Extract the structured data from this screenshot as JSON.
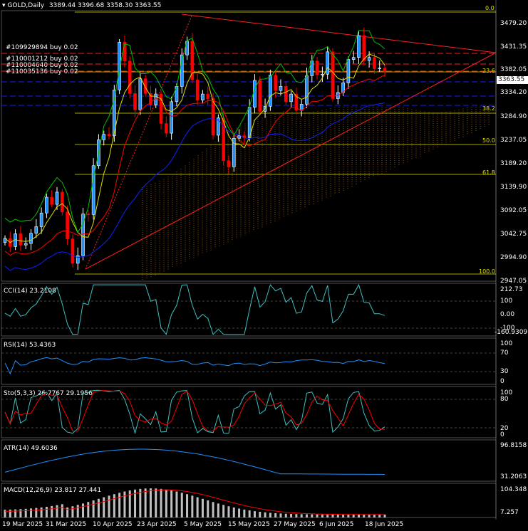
{
  "header": {
    "symbol": "GOLD,Daily",
    "ohlc": "3389.44 3396.68 3358.30 3363.55"
  },
  "orders": [
    "#109929894 buy 0.02",
    "#110001212 buy 0.02",
    "#110004640 buy 0.02",
    "#110035136 buy 0.02"
  ],
  "current_price": "3363.55",
  "fib_levels": [
    "0.0",
    "23.6",
    "38.2",
    "50.0",
    "61.8",
    "100.0"
  ],
  "price_axis": [
    "3479.20",
    "3431.35",
    "3382.05",
    "3334.20",
    "3284.90",
    "3237.05",
    "3189.20",
    "3139.90",
    "3092.05",
    "3042.75",
    "2994.90",
    "2947.05"
  ],
  "date_axis": [
    "19 Mar 2025",
    "31 Mar 2025",
    "10 Apr 2025",
    "23 Apr 2025",
    "5 May 2025",
    "15 May 2025",
    "27 May 2025",
    "6 Jun 2025",
    "18 Jun 2025"
  ],
  "indicators": {
    "cci": {
      "title": "CCI(14) 23.2108",
      "axis": [
        "212.73",
        "100",
        "0.00",
        "-100",
        "-160.9309"
      ]
    },
    "rsi": {
      "title": "RSI(14) 53.4363",
      "axis": [
        "100",
        "70",
        "30",
        "0"
      ]
    },
    "stoch": {
      "title": "Sto(5,3,3) 26.7767 29.1956",
      "axis": [
        "100",
        "80",
        "20",
        "0"
      ]
    },
    "atr": {
      "title": "ATR(14) 49.6036",
      "axis": [
        "96.8158",
        "31.2063"
      ]
    },
    "macd": {
      "title": "MACD(12,26,9) 23.817 27.441",
      "axis": [
        "104.348",
        "7.257"
      ]
    }
  },
  "colors": {
    "bull": "#ffffff",
    "bear": "#ff0000",
    "bull_body": "#1e90ff",
    "bear_body": "#ff0000",
    "fib": "#e0e000",
    "trend": "#ff2020",
    "ma_green": "#00c000",
    "ma_blue": "#1020ff",
    "ma_yellow": "#e0e000",
    "ma_red": "#ff0000",
    "cci": "#40c0c0",
    "rsi": "#1e90ff",
    "stoch_main": "#40c0c0",
    "stoch_signal": "#ff0000",
    "atr": "#1e90ff",
    "macd_hist": "#c0c0c0",
    "macd_signal": "#ff0000"
  },
  "chart_data": {
    "type": "candlestick",
    "symbol": "GOLD",
    "timeframe": "Daily",
    "ylim": [
      2947.05,
      3479.2
    ],
    "x": [
      "19 Mar 2025",
      "31 Mar 2025",
      "10 Apr 2025",
      "23 Apr 2025",
      "5 May 2025",
      "15 May 2025",
      "27 May 2025",
      "6 Jun 2025",
      "18 Jun 2025"
    ],
    "closes": [
      3034,
      3018,
      3043,
      3021,
      3024,
      3044,
      3057,
      3084,
      3115,
      3101,
      3125,
      3086,
      3033,
      2985,
      3000,
      3082,
      3081,
      3177,
      3228,
      3239,
      3236,
      3326,
      3420,
      3383,
      3319,
      3287,
      3348,
      3319,
      3297,
      3318,
      3260,
      3241,
      3303,
      3333,
      3395,
      3422,
      3346,
      3306,
      3318,
      3309,
      3237,
      3271,
      3187,
      3175,
      3231,
      3236,
      3232,
      3292,
      3345,
      3284,
      3294,
      3355,
      3325,
      3333,
      3303,
      3318,
      3286,
      3298,
      3354,
      3383,
      3356,
      3357,
      3401,
      3309,
      3321,
      3340,
      3386,
      3390,
      3433,
      3384,
      3390,
      3368,
      3369,
      3363
    ],
    "last_close": 3363.55
  }
}
